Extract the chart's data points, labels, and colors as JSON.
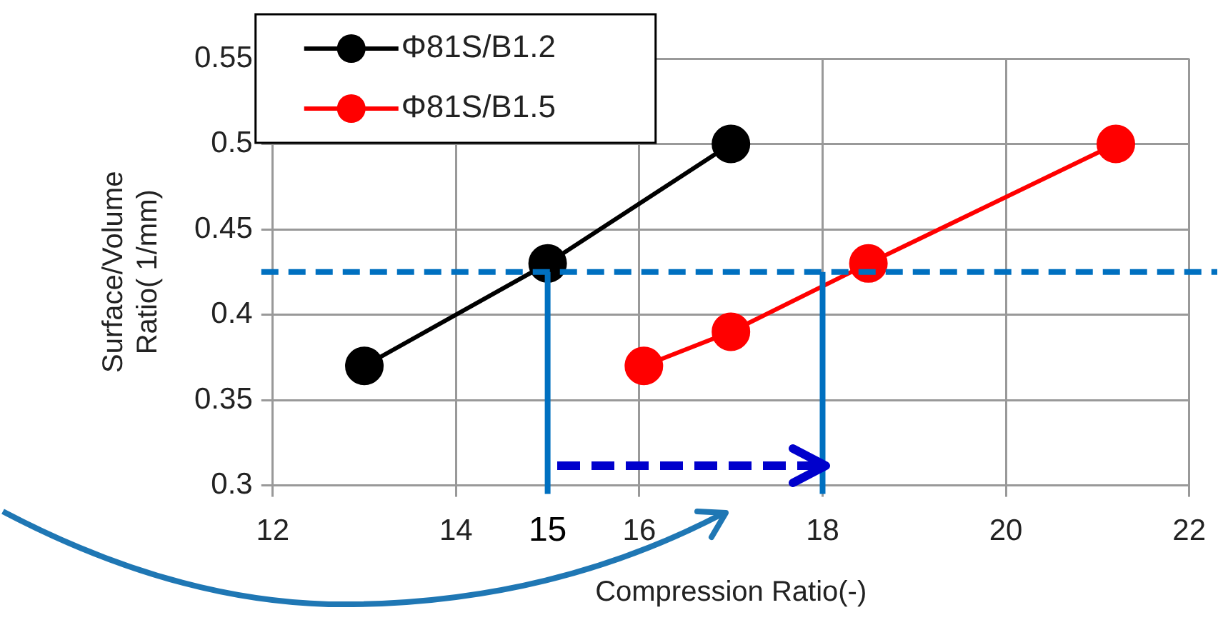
{
  "chart_data": {
    "type": "line",
    "xlabel": "Compression Ratio(-)",
    "ylabel": "Surface/Volume Ratio( 1/mm)",
    "xlim": [
      12,
      22
    ],
    "xticks": [
      12,
      14,
      16,
      18,
      20,
      22
    ],
    "ylim": [
      0.3,
      0.55
    ],
    "yticks": [
      0.3,
      0.35,
      0.4,
      0.45,
      0.5,
      0.55
    ],
    "grid": true,
    "legend": "top left",
    "marker": "circle",
    "line_style": "solid",
    "series": [
      {
        "name": "Φ81S/B1.2",
        "color": "#000000",
        "x": [
          13,
          15,
          17
        ],
        "values": [
          0.37,
          0.43,
          0.5
        ]
      },
      {
        "name": "Φ81S/B1.5",
        "color": "#ff0000",
        "x": [
          16.05,
          17,
          18.5,
          21.2
        ],
        "values": [
          0.37,
          0.39,
          0.43,
          0.5
        ]
      }
    ],
    "ref_lines": [
      {
        "axis": "y",
        "value": 0.425,
        "color": "#0070c0",
        "line_style": "dashed"
      },
      {
        "axis": "x",
        "value": 15,
        "color": "#0070c0",
        "line_style": "solid"
      },
      {
        "axis": "x",
        "value": 18,
        "color": "#0070c0",
        "line_style": "solid"
      }
    ],
    "annotations": [
      {
        "text": "15",
        "x": 15,
        "y": 0.3
      }
    ]
  }
}
